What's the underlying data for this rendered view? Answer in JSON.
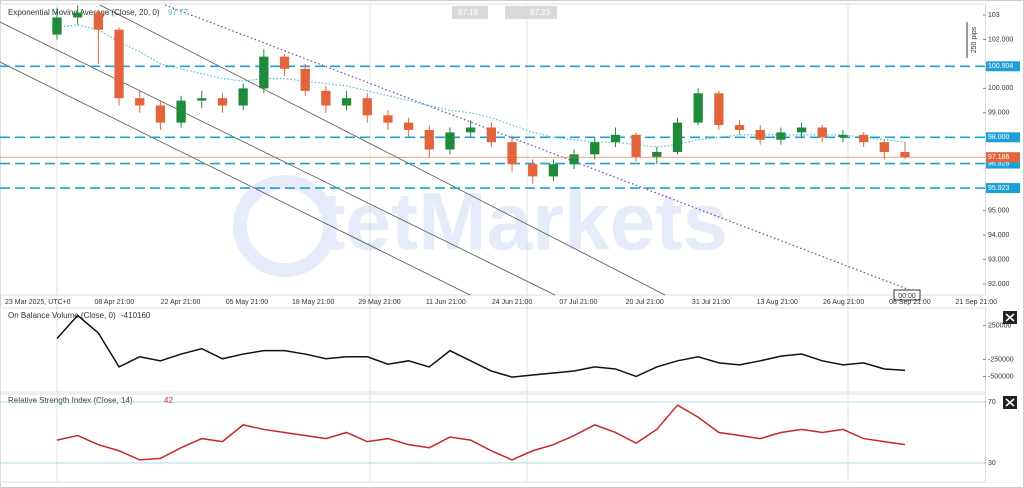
{
  "chart_data": [
    {
      "type": "candlestick",
      "title": "Exponential Moving Average (Close, 20, 0)",
      "title_value": 97.77,
      "trade_buttons": [
        97.18,
        97.23
      ],
      "scale_note": "250 pips",
      "watermark": "tetMarkets",
      "time_marker": "00:00",
      "x_labels": [
        "23 Mar 2025, UTC+0",
        "08 Apr 21:00",
        "22 Apr 21:00",
        "05 May 21:00",
        "18 May 21:00",
        "29 May 21:00",
        "11 Jun 21:00",
        "24 Jun 21:00",
        "07 Jul 21:00",
        "20 Jul 21:00",
        "31 Jul 21:00",
        "13 Aug 21:00",
        "26 Aug 21:00",
        "08 Sep 21:00",
        "21 Sep 21:00"
      ],
      "up_color": "#1f8a3b",
      "down_color": "#e2643c",
      "open": [
        102.2,
        102.9,
        103.1,
        102.4,
        99.6,
        99.3,
        98.6,
        99.5,
        99.6,
        99.3,
        100.0,
        101.3,
        100.8,
        99.9,
        99.3,
        99.6,
        98.9,
        98.6,
        98.3,
        97.5,
        98.2,
        98.4,
        97.8,
        96.9,
        96.4,
        96.9,
        97.3,
        97.8,
        98.1,
        97.2,
        97.4,
        98.6,
        99.8,
        98.5,
        98.3,
        97.9,
        98.2,
        98.4,
        98.0,
        98.1,
        97.8,
        97.4
      ],
      "high": [
        103.3,
        103.4,
        103.2,
        102.5,
        99.9,
        99.5,
        99.7,
        99.9,
        99.8,
        100.2,
        101.6,
        101.4,
        101.0,
        100.1,
        99.9,
        99.8,
        99.1,
        98.8,
        98.5,
        98.4,
        98.7,
        98.6,
        98.0,
        97.1,
        97.1,
        97.5,
        98.0,
        98.4,
        98.2,
        97.6,
        98.8,
        100.0,
        99.9,
        98.7,
        98.5,
        98.4,
        98.6,
        98.5,
        98.3,
        98.2,
        97.9,
        97.8
      ],
      "low": [
        102.0,
        102.6,
        101.0,
        99.3,
        99.0,
        98.3,
        98.4,
        99.2,
        99.0,
        99.1,
        99.8,
        100.5,
        99.7,
        99.0,
        99.1,
        98.6,
        98.3,
        98.0,
        97.2,
        97.3,
        98.0,
        97.6,
        96.6,
        96.1,
        96.2,
        96.7,
        97.1,
        97.6,
        97.0,
        96.9,
        97.3,
        98.5,
        98.3,
        98.1,
        97.7,
        97.7,
        98.0,
        97.8,
        97.8,
        97.6,
        97.1,
        97.1
      ],
      "close": [
        102.9,
        103.1,
        102.4,
        99.6,
        99.3,
        98.6,
        99.5,
        99.6,
        99.3,
        100.0,
        101.3,
        100.8,
        99.9,
        99.3,
        99.6,
        98.9,
        98.6,
        98.3,
        97.5,
        98.2,
        98.4,
        97.8,
        96.9,
        96.4,
        96.9,
        97.3,
        97.8,
        98.1,
        97.2,
        97.4,
        98.6,
        99.8,
        98.5,
        98.3,
        97.9,
        98.2,
        98.4,
        98.0,
        98.1,
        97.8,
        97.4,
        97.19
      ],
      "ema": {
        "color": "#4fc3c8",
        "values": [
          102.5,
          102.6,
          102.4,
          101.9,
          101.5,
          101.0,
          100.8,
          100.6,
          100.4,
          100.3,
          100.4,
          100.4,
          100.3,
          100.2,
          100.1,
          99.9,
          99.7,
          99.5,
          99.3,
          99.1,
          99.0,
          98.8,
          98.5,
          98.2,
          98.0,
          97.9,
          97.8,
          97.8,
          97.7,
          97.6,
          97.7,
          97.9,
          98.0,
          98.1,
          98.1,
          98.1,
          98.1,
          98.1,
          98.1,
          98.0,
          97.9,
          97.8
        ]
      },
      "levels": [
        {
          "value": 100.904,
          "label": "100.904"
        },
        {
          "value": 98,
          "label": "98.000"
        },
        {
          "value": 96.926,
          "label": "96.926"
        },
        {
          "value": 95.923,
          "label": "95.923"
        }
      ],
      "level_color": "#1ea0d6",
      "last_price": {
        "value": 97.186,
        "label": "97.186"
      },
      "ylim": [
        91.55,
        103.41
      ],
      "yticks": [
        103,
        {
          "value": 102,
          "label": "102.000"
        },
        {
          "value": 100,
          "label": "100.000"
        },
        {
          "value": 99,
          "label": "99.000"
        },
        {
          "value": 95,
          "label": "95.000"
        },
        {
          "value": 94,
          "label": "94.000"
        },
        {
          "value": 93,
          "label": "93.000"
        },
        {
          "value": 92,
          "label": "92.000"
        }
      ]
    },
    {
      "type": "line",
      "title": "On Balance Volume (Close, 0)",
      "title_value": -410160,
      "color": "#111111",
      "values": [
        60000,
        400000,
        140000,
        -360000,
        -210000,
        -270000,
        -170000,
        -90000,
        -240000,
        -170000,
        -120000,
        -120000,
        -170000,
        -240000,
        -210000,
        -210000,
        -320000,
        -270000,
        -360000,
        -120000,
        -270000,
        -420000,
        -510000,
        -480000,
        -450000,
        -420000,
        -360000,
        -390000,
        -500000,
        -360000,
        -270000,
        -210000,
        -300000,
        -330000,
        -270000,
        -200000,
        -170000,
        -270000,
        -330000,
        -300000,
        -390000,
        -410160
      ],
      "ylim": [
        -730000,
        480000
      ],
      "yticks": [
        250000,
        -250000,
        -500000
      ]
    },
    {
      "type": "line",
      "title": "Relative Strength Index (Close, 14)",
      "title_value": 42,
      "color": "#c62828",
      "values": [
        45,
        48,
        42,
        38,
        32,
        33,
        40,
        46,
        44,
        55,
        52,
        50,
        48,
        46,
        50,
        44,
        46,
        42,
        40,
        47,
        45,
        38,
        32,
        38,
        42,
        48,
        55,
        50,
        43,
        52,
        68,
        60,
        50,
        48,
        46,
        50,
        52,
        50,
        52,
        46,
        44,
        42
      ],
      "ylim": [
        17.5,
        74.6
      ],
      "yticks": [
        70,
        30
      ]
    }
  ]
}
